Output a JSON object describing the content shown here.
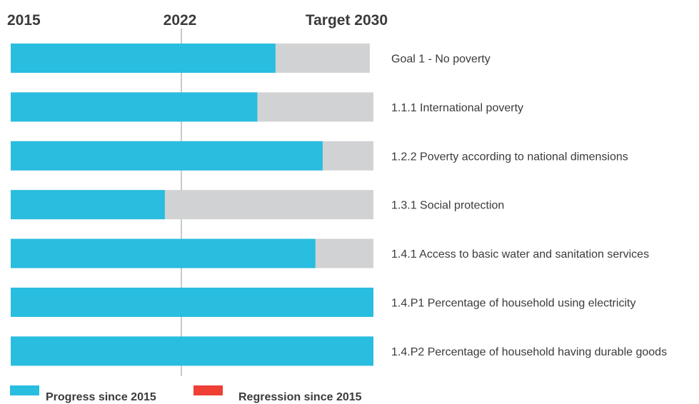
{
  "chart_data": {
    "type": "bar",
    "orientation": "horizontal",
    "scale_labels": {
      "start": "2015",
      "mid": "2022",
      "end": "Target 2030"
    },
    "categories": [
      "Goal 1 - No poverty",
      "1.1.1 International poverty",
      "1.2.2 Poverty according to national dimensions",
      "1.3.1  Social protection",
      "1.4.1 Access to basic water and sanitation services",
      "1.4.P1 Percentage of household using electricity",
      "1.4.P2 Percentage of household having durable goods"
    ],
    "series": [
      {
        "name": "Progress since 2015",
        "color": "#29bde0",
        "values": [
          0.73,
          0.68,
          0.86,
          0.425,
          0.84,
          1.0,
          1.0
        ]
      },
      {
        "name": "Regression since 2015",
        "color": "#ee4035",
        "values": [
          0,
          0,
          0,
          0,
          0,
          0,
          0
        ]
      }
    ],
    "remaining_color": "#d1d2d4",
    "max_values": [
      0.99,
      1.0,
      1.0,
      1.0,
      1.0,
      1.0,
      1.0
    ],
    "xlim": [
      0,
      1
    ],
    "reference_line_at": 0.47,
    "legend_position": "bottom-left"
  }
}
